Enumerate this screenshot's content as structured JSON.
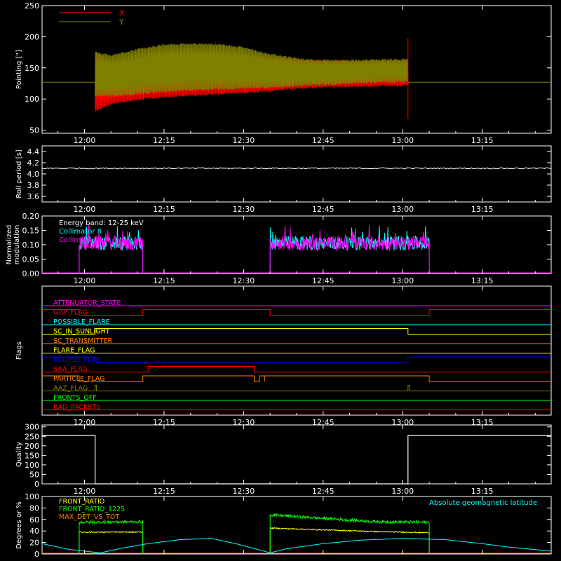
{
  "x_axis": {
    "start": "11:52",
    "end": "13:28",
    "ticks": [
      "12:00",
      "12:15",
      "12:30",
      "12:45",
      "13:00",
      "13:15"
    ]
  },
  "colors": {
    "background": "#000000",
    "axes": "#ffffff",
    "x_series": "#ff0000",
    "y_series": "#808000",
    "roll": "#ffffff",
    "white": "#ffffff",
    "cyan": "#00ffff",
    "magenta": "#ff00ff",
    "yellow": "#ffff00",
    "green": "#00ff00",
    "orange": "#ff8000"
  },
  "chart_data": [
    {
      "type": "line",
      "panel": "pointing",
      "ylabel": "Pointing [\"]",
      "ylim": [
        45,
        250
      ],
      "yticks": [
        50,
        100,
        150,
        200,
        250
      ],
      "legend": [
        {
          "name": "X",
          "color": "#ff0000"
        },
        {
          "name": "Y",
          "color": "#808000"
        }
      ],
      "baseline": 127,
      "active": [
        "12:02",
        "13:01"
      ],
      "series": [
        {
          "name": "X",
          "color": "#ff0000",
          "x": [
            "12:02",
            "12:05",
            "12:10",
            "12:15",
            "12:20",
            "12:25",
            "12:30",
            "12:35",
            "12:40",
            "12:45",
            "12:50",
            "12:55",
            "13:01"
          ],
          "upper": [
            175,
            158,
            162,
            168,
            170,
            171,
            170,
            167,
            163,
            162,
            161,
            161,
            160
          ],
          "lower": [
            80,
            92,
            99,
            103,
            106,
            108,
            110,
            113,
            117,
            119,
            120,
            121,
            122
          ]
        },
        {
          "name": "Y",
          "color": "#808000",
          "x": [
            "12:02",
            "12:05",
            "12:10",
            "12:15",
            "12:20",
            "12:25",
            "12:30",
            "12:35",
            "12:40",
            "12:45",
            "12:50",
            "12:55",
            "13:01"
          ],
          "upper": [
            175,
            170,
            180,
            187,
            189,
            188,
            183,
            172,
            165,
            162,
            162,
            163,
            164
          ],
          "lower": [
            105,
            105,
            108,
            112,
            114,
            116,
            117,
            118,
            121,
            123,
            125,
            127,
            128
          ]
        }
      ]
    },
    {
      "type": "line",
      "panel": "roll",
      "ylabel": "Roll period [s]",
      "ylim": [
        3.5,
        4.5
      ],
      "yticks": [
        "3.6",
        "3.8",
        "4.0",
        "4.2",
        "4.4"
      ],
      "series": [
        {
          "name": "",
          "color": "#ffffff",
          "value": 4.1
        }
      ]
    },
    {
      "type": "line",
      "panel": "modulation",
      "ylabel": "Normalized modulation",
      "ylim": [
        0,
        0.2
      ],
      "yticks": [
        "0.00",
        "0.05",
        "0.10",
        "0.15",
        "0.20"
      ],
      "legend": [
        {
          "name": "Energy band: 12-25 keV",
          "color": "#ffffff"
        },
        {
          "name": "Collimator 8",
          "color": "#00ffff"
        },
        {
          "name": "Collimator 9",
          "color": "#ff00ff"
        }
      ],
      "segments": [
        [
          "11:59",
          "12:11"
        ],
        [
          "12:35",
          "13:05"
        ]
      ],
      "series": [
        {
          "name": "Collimator 8",
          "color": "#00ffff",
          "mean": 0.105
        },
        {
          "name": "Collimator 9",
          "color": "#ff00ff",
          "mean": 0.105
        }
      ]
    },
    {
      "type": "line",
      "panel": "flags",
      "ylabel": "Flags",
      "flags": [
        {
          "name": "ATTENUATOR_STATE",
          "color": "#ff00ff",
          "highs": []
        },
        {
          "name": "GAP_FLAG",
          "color": "#ff0000",
          "highs": [
            [
              "11:52",
              "11:59"
            ],
            [
              "12:11",
              "12:35"
            ],
            [
              "13:05",
              "13:28"
            ]
          ]
        },
        {
          "name": "POSSIBLE_FLARE",
          "color": "#00ffff",
          "highs": []
        },
        {
          "name": "SC_IN_SUNLIGHT",
          "color": "#ffff00",
          "highs": [
            [
              "12:02",
              "13:01"
            ]
          ]
        },
        {
          "name": "SC_TRANSMITTER",
          "color": "#ff8000",
          "highs": []
        },
        {
          "name": "FLARE_FLAG",
          "color": "#ffff00",
          "highs": []
        },
        {
          "name": "ECLIPSE_FLAG",
          "color": "#0000ff",
          "highs": [
            [
              "11:52",
              "12:02"
            ],
            [
              "13:01",
              "13:28"
            ]
          ]
        },
        {
          "name": "SAA_FLAG",
          "color": "#ff0000",
          "highs": [
            [
              "12:12",
              "12:32"
            ]
          ]
        },
        {
          "name": "PARTICLE_FLAG",
          "color": "#ff8000",
          "highs": [
            [
              "11:52",
              "11:59"
            ],
            [
              "12:11",
              "12:32"
            ],
            [
              "12:33",
              "12:34"
            ],
            [
              "12:34",
              "13:05"
            ]
          ]
        },
        {
          "name": "AAZ_FLAG",
          "color": "#808000",
          "highs": [
            [
              "12:02",
              "12:02"
            ],
            [
              "13:01",
              "13:01"
            ]
          ]
        },
        {
          "name": "FRONTS_OFF",
          "color": "#00ff00",
          "highs": []
        },
        {
          "name": "BAD_PACKETS",
          "color": "#ff0000",
          "highs": []
        }
      ]
    },
    {
      "type": "line",
      "panel": "quality",
      "ylabel": "Quality",
      "ylim": [
        0,
        310
      ],
      "yticks": [
        0,
        50,
        100,
        150,
        200,
        250,
        300
      ],
      "series": [
        {
          "name": "",
          "color": "#ffffff",
          "x": [
            "11:52",
            "12:02",
            "12:02",
            "13:01",
            "13:01",
            "13:28"
          ],
          "y": [
            255,
            255,
            0,
            0,
            255,
            255
          ]
        }
      ]
    },
    {
      "type": "line",
      "panel": "ratios",
      "ylabel": "Degrees or %",
      "ylim": [
        0,
        100
      ],
      "yticks": [
        0,
        20,
        40,
        60,
        80,
        100
      ],
      "legend": [
        {
          "name": "FRONT_RATIO",
          "color": "#ffff00"
        },
        {
          "name": "FRONT_RATIO_1225",
          "color": "#00ff00"
        },
        {
          "name": "MAX_DET_VS_TOT",
          "color": "#ff8000"
        }
      ],
      "annotation": {
        "text": "Absolute geomagnetic latitude",
        "color": "#00ffff"
      },
      "segments": [
        [
          "11:59",
          "12:11"
        ],
        [
          "12:35",
          "13:05"
        ]
      ],
      "series": [
        {
          "name": "FRONT_RATIO",
          "color": "#ffff00",
          "x": [
            "11:59",
            "12:11",
            "12:35",
            "12:45",
            "12:55",
            "13:05"
          ],
          "y": [
            38,
            38,
            45,
            42,
            39,
            37
          ]
        },
        {
          "name": "FRONT_RATIO_1225",
          "color": "#00ff00",
          "x": [
            "11:59",
            "12:11",
            "12:35",
            "12:45",
            "12:55",
            "13:05"
          ],
          "y": [
            55,
            56,
            68,
            62,
            56,
            55
          ]
        },
        {
          "name": "Absolute geomagnetic latitude",
          "color": "#00ffff",
          "x": [
            "11:52",
            "11:57",
            "12:03",
            "12:07",
            "12:12",
            "12:18",
            "12:24",
            "12:29",
            "12:35",
            "12:38",
            "12:45",
            "12:52",
            "13:00",
            "13:08",
            "13:15",
            "13:20",
            "13:28"
          ],
          "y": [
            18,
            8,
            2,
            10,
            18,
            25,
            27,
            17,
            2,
            9,
            18,
            24,
            27,
            25,
            18,
            12,
            5
          ]
        }
      ]
    }
  ]
}
